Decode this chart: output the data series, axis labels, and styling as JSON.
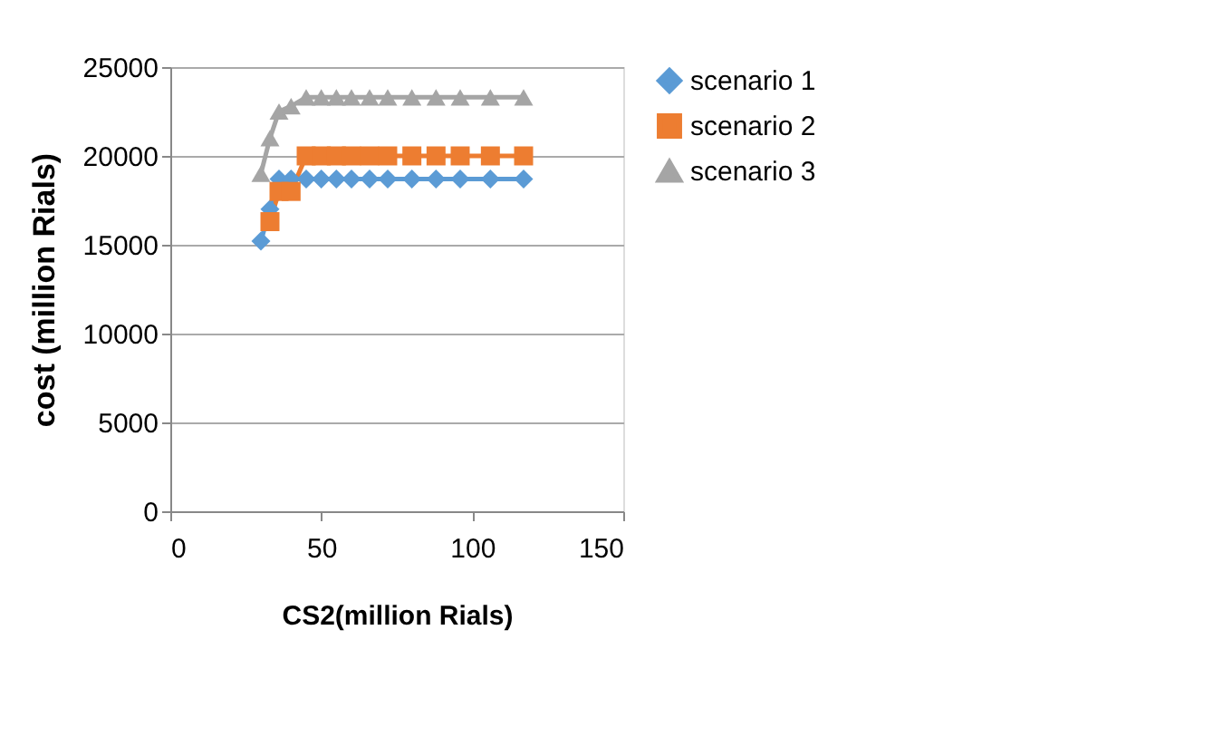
{
  "chart_data": {
    "type": "line",
    "xlabel": "CS2(million Rials)",
    "ylabel": "cost (million Rials)",
    "xlim": [
      0,
      150
    ],
    "xticks": [
      0,
      50,
      100,
      150
    ],
    "ylim": [
      0,
      25000
    ],
    "yticks": [
      0,
      5000,
      10000,
      15000,
      20000,
      25000
    ],
    "grid": "y",
    "legend": "right",
    "series": [
      {
        "name": "scenario 1",
        "color": "#5b9bd5",
        "marker": "diamond",
        "x": [
          30,
          33,
          36,
          40,
          45,
          50,
          55,
          60,
          66,
          72,
          80,
          88,
          96,
          106,
          117
        ],
        "values": [
          15200,
          17000,
          18700,
          18700,
          18700,
          18700,
          18700,
          18700,
          18700,
          18700,
          18700,
          18700,
          18700,
          18700,
          18700
        ]
      },
      {
        "name": "scenario 2",
        "color": "#ed7d31",
        "marker": "square",
        "x": [
          33,
          36,
          40,
          45,
          50,
          55,
          60,
          66,
          72,
          80,
          88,
          96,
          106,
          117
        ],
        "values": [
          16300,
          18000,
          18000,
          20000,
          20000,
          20000,
          20000,
          20000,
          20000,
          20000,
          20000,
          20000,
          20000,
          20000
        ]
      },
      {
        "name": "scenario 3",
        "color": "#a5a5a5",
        "marker": "triangle",
        "x": [
          30,
          33,
          36,
          40,
          45,
          50,
          55,
          60,
          66,
          72,
          80,
          88,
          96,
          106,
          117
        ],
        "values": [
          19000,
          21000,
          22500,
          22800,
          23300,
          23300,
          23300,
          23300,
          23300,
          23300,
          23300,
          23300,
          23300,
          23300,
          23300
        ]
      }
    ]
  }
}
